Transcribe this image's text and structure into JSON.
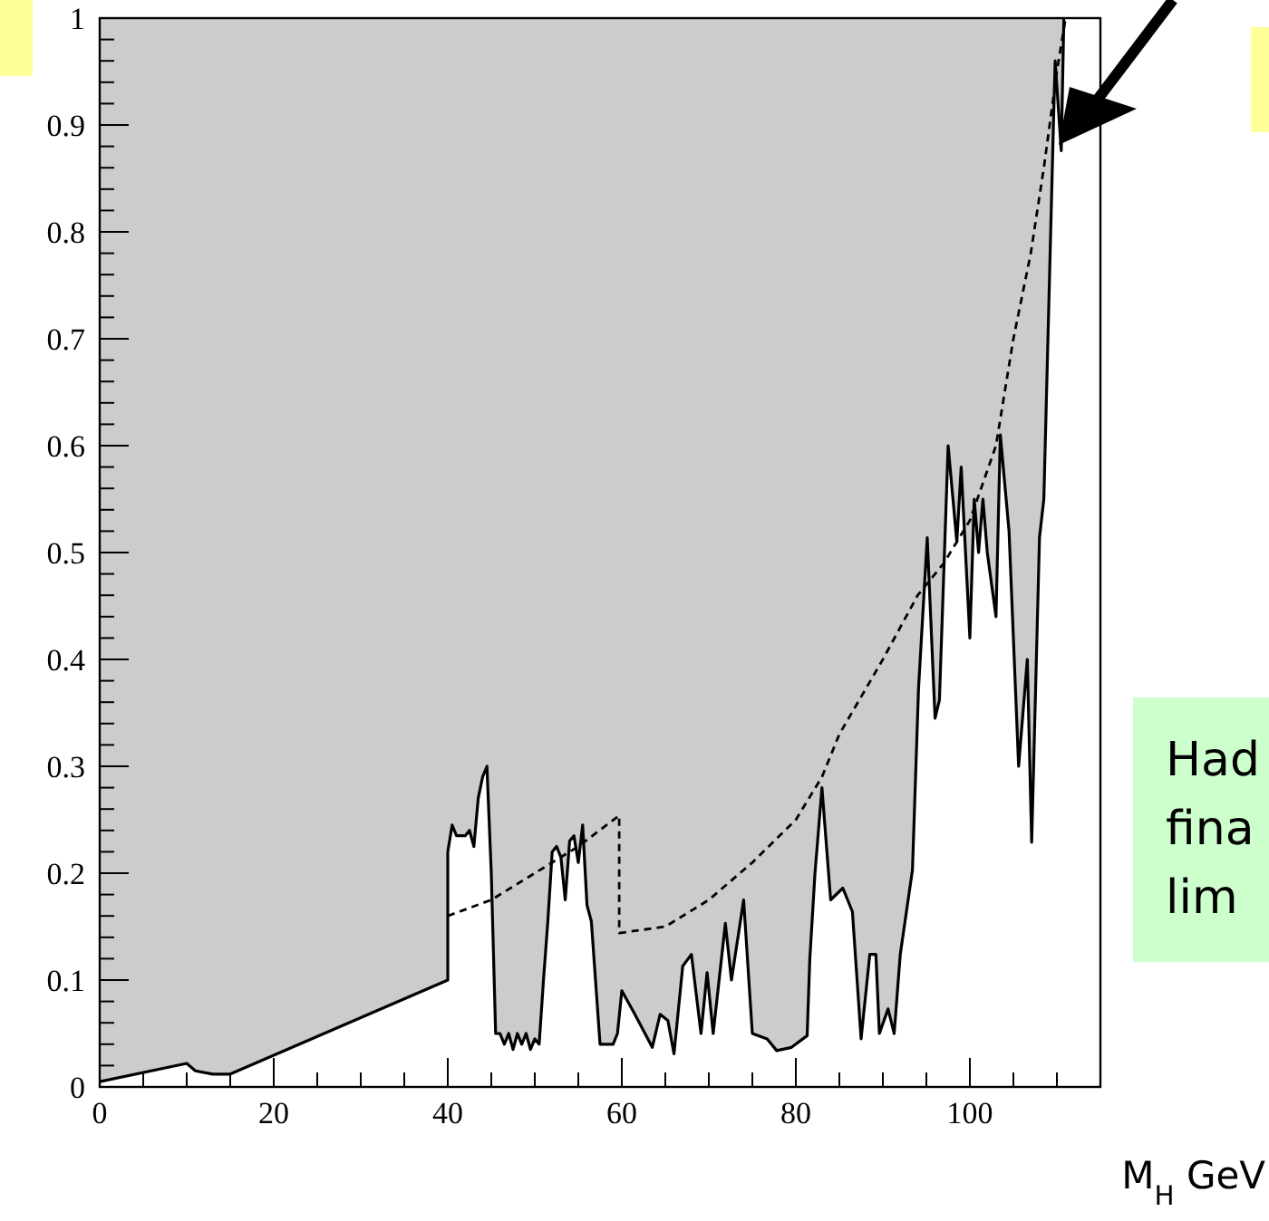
{
  "chart_data": {
    "type": "line",
    "xlabel": "M$_{H}$ GeV",
    "xlim": [
      0,
      115
    ],
    "ylim": [
      0,
      1
    ],
    "xticks": [
      0,
      20,
      40,
      60,
      80,
      100
    ],
    "yticks": [
      0,
      0.1,
      0.2,
      0.3,
      0.4,
      0.5,
      0.6,
      0.7,
      0.8,
      0.9,
      1
    ],
    "annotations": [
      "Had",
      "fina",
      "lim"
    ],
    "series": [
      {
        "color": "#000000",
        "x": [
          0,
          10,
          11,
          13,
          15,
          40,
          40,
          40.5,
          41,
          42,
          42.5,
          43,
          43.5,
          44,
          44.5,
          45,
          45.5,
          46,
          46.5,
          47,
          47.5,
          48,
          48.5,
          49,
          49.5,
          50,
          50.5,
          51,
          51.5,
          52,
          52.5,
          53,
          53.5,
          54,
          54.5,
          55,
          55.5,
          56,
          56.5,
          57.5,
          59,
          59.5,
          60,
          61.5,
          63.5,
          64.4,
          65.3,
          66,
          67,
          68,
          69.1,
          69.8,
          70.5,
          71.9,
          72.6,
          74,
          75,
          76.7,
          77.8,
          79.5,
          81.3,
          81.6,
          82.2,
          83,
          84,
          85.4,
          86.5,
          87.5,
          88.5,
          89.2,
          89.6,
          90.6,
          91.3,
          92,
          93.4,
          94.1,
          95.1,
          96,
          96.5,
          97.5,
          98.5,
          99,
          100,
          100.5,
          101,
          101.5,
          102,
          103,
          103.5,
          104.5,
          105.6,
          106.6,
          107.1,
          108,
          108.5,
          109.6,
          109.8,
          110.5,
          110.8
        ],
        "values": [
          0.005,
          0.022,
          0.015,
          0.012,
          0.012,
          0.1,
          0.22,
          0.245,
          0.235,
          0.235,
          0.24,
          0.225,
          0.27,
          0.29,
          0.3,
          0.2,
          0.05,
          0.05,
          0.04,
          0.05,
          0.035,
          0.05,
          0.04,
          0.05,
          0.035,
          0.045,
          0.04,
          0.1,
          0.155,
          0.22,
          0.225,
          0.215,
          0.175,
          0.23,
          0.235,
          0.21,
          0.245,
          0.17,
          0.155,
          0.04,
          0.04,
          0.05,
          0.09,
          0.068,
          0.037,
          0.068,
          0.062,
          0.031,
          0.113,
          0.124,
          0.05,
          0.107,
          0.05,
          0.153,
          0.1,
          0.175,
          0.05,
          0.045,
          0.034,
          0.037,
          0.048,
          0.119,
          0.2,
          0.28,
          0.175,
          0.186,
          0.164,
          0.045,
          0.124,
          0.124,
          0.05,
          0.073,
          0.05,
          0.124,
          0.203,
          0.373,
          0.514,
          0.345,
          0.362,
          0.6,
          0.51,
          0.58,
          0.42,
          0.55,
          0.5,
          0.55,
          0.5,
          0.44,
          0.61,
          0.52,
          0.3,
          0.4,
          0.229,
          0.514,
          0.55,
          0.9,
          0.96,
          0.876,
          1
        ]
      },
      {
        "type": "line",
        "color": "#000000",
        "line_style": "dashed",
        "x": [
          40,
          45,
          50,
          55,
          59.7,
          59.7,
          65,
          70,
          75,
          80,
          83,
          85,
          90,
          94,
          97,
          100,
          103,
          105,
          107,
          108.5,
          110,
          111
        ],
        "values": [
          0.16,
          0.175,
          0.2,
          0.225,
          0.254,
          0.144,
          0.15,
          0.175,
          0.21,
          0.25,
          0.29,
          0.33,
          0.4,
          0.46,
          0.49,
          0.53,
          0.6,
          0.7,
          0.78,
          0.86,
          0.95,
          1
        ]
      }
    ]
  }
}
